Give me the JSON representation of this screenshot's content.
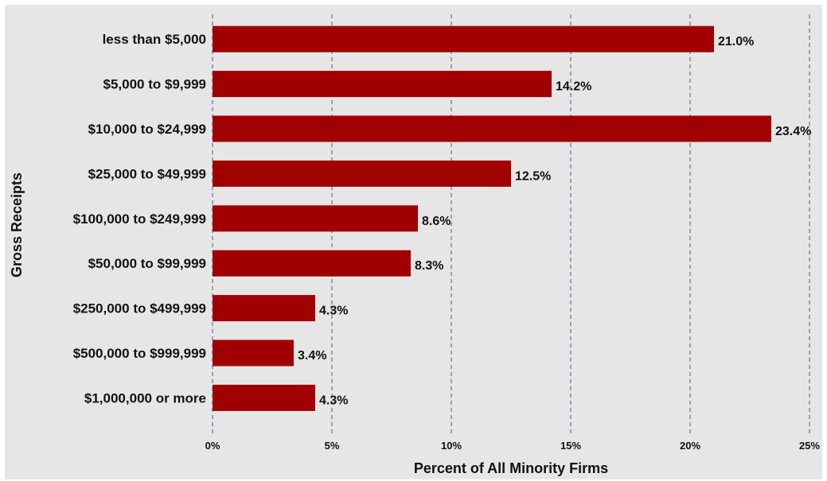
{
  "chart_data": {
    "type": "bar",
    "orientation": "horizontal",
    "xlabel": "Percent of All Minority Firms",
    "ylabel": "Gross Receipts",
    "xlim": [
      0,
      25
    ],
    "x_ticks": [
      0,
      5,
      10,
      15,
      20,
      25
    ],
    "x_tick_labels": [
      "0%",
      "5%",
      "10%",
      "15%",
      "20%",
      "25%"
    ],
    "grid": "vertical dashed",
    "categories": [
      "less than $5,000",
      "$5,000 to $9,999",
      "$10,000 to $24,999",
      "$25,000 to $49,999",
      "$100,000 to $249,999",
      "$50,000 to $99,999",
      "$250,000 to $499,999",
      "$500,000 to $999,999",
      "$1,000,000 or more"
    ],
    "values": [
      21.0,
      14.2,
      23.4,
      12.5,
      8.6,
      8.3,
      4.3,
      3.4,
      4.3
    ],
    "value_labels": [
      "21.0%",
      "14.2%",
      "23.4%",
      "12.5%",
      "8.6%",
      "8.3%",
      "4.3%",
      "3.4%",
      "4.3%"
    ],
    "colors": {
      "bar": "#a00000",
      "panel": "#e6e6e6",
      "grid": "#6b6b9a"
    }
  }
}
